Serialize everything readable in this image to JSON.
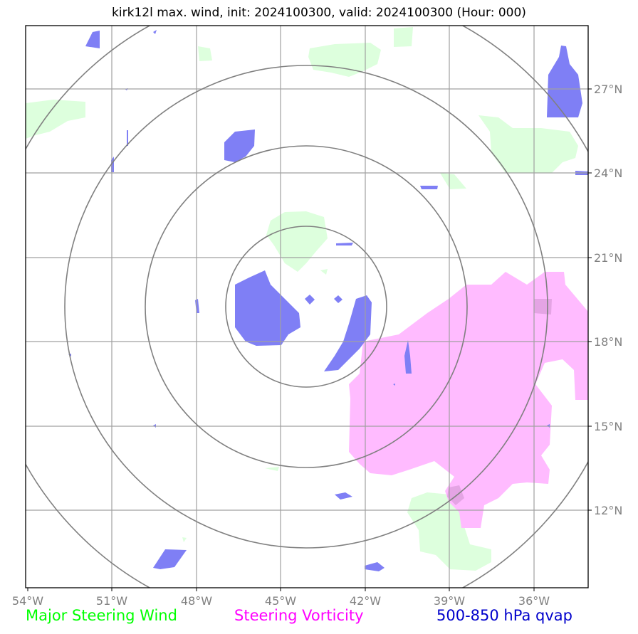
{
  "title": "kirk12l max. wind, init: 2024100300, valid: 2024100300 (Hour: 000)",
  "map": {
    "lon_ticks": [
      "54°W",
      "51°W",
      "48°W",
      "45°W",
      "42°W",
      "39°W",
      "36°W"
    ],
    "lat_ticks": [
      "27°N",
      "24°N",
      "21°N",
      "18°N",
      "15°N",
      "12°N"
    ],
    "extent": {
      "lon": [
        -54,
        -34
      ],
      "lat": [
        9.9,
        29.9
      ]
    },
    "center": {
      "lon": -44.0,
      "lat": 19.4
    },
    "ring_count": 4,
    "grid": true
  },
  "legend": [
    {
      "label": "Major Steering Wind",
      "color": "#00ff00"
    },
    {
      "label": "Steering Vorticity",
      "color": "#ff00ff"
    },
    {
      "label": "500-850 hPa qvap",
      "color": "#0000cc"
    }
  ],
  "fills": {
    "wind_color": "#ddffdd",
    "vorticity_color": "#ffbbff",
    "qvap_color": "#7f7ff5"
  }
}
